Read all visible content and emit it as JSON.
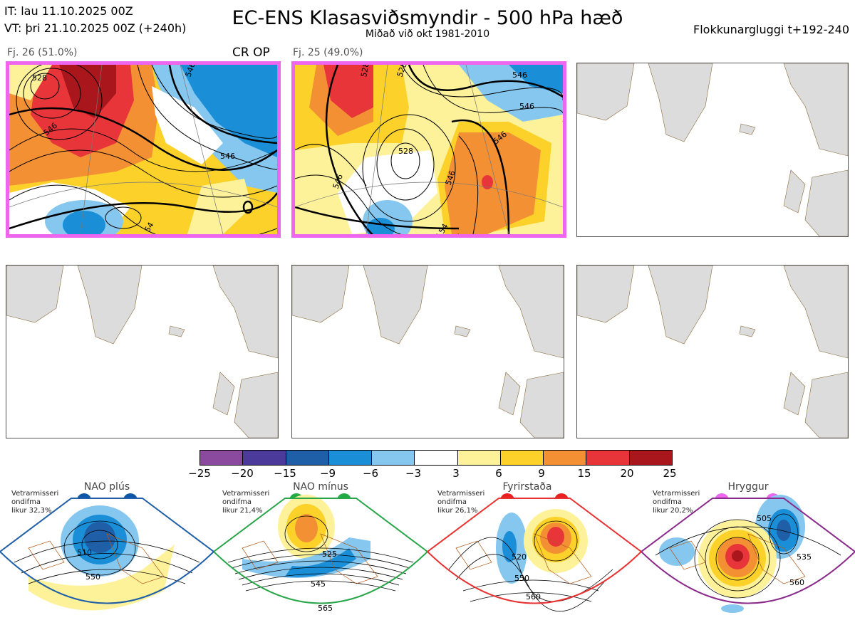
{
  "header": {
    "it_line": "IT: lau 11.10.2025 00Z",
    "vt_line": "VT: þri 21.10.2025 00Z  (+240h)",
    "title": "EC-ENS Klasasviðsmyndir - 500 hPa hæð",
    "subtitle": "Miðað við okt 1981-2010",
    "window": "Flokkunargluggi t+192-240"
  },
  "clusters": [
    {
      "label": "Fj. 26 (51.0%)",
      "tag": "CR OP",
      "contours": [
        "528",
        "546",
        "546",
        "54",
        "546"
      ]
    },
    {
      "label": "Fj. 25 (49.0%)",
      "tag": "",
      "contours": [
        "528",
        "528",
        "546",
        "546",
        "528",
        "546",
        "546",
        "546",
        "54"
      ]
    }
  ],
  "colorbar": {
    "colors": [
      "#8b4a9e",
      "#4b3a9a",
      "#1f5fa8",
      "#1a8fd8",
      "#86c7ef",
      "#ffffff",
      "#fdf29a",
      "#fcd22a",
      "#f49034",
      "#e8353a",
      "#a9171c"
    ],
    "labels": [
      "−25",
      "−20",
      "−15",
      "−9",
      "−6",
      "−3",
      "3",
      "6",
      "9",
      "15",
      "20",
      "25"
    ]
  },
  "regimes": [
    {
      "name": "NAO plús",
      "info1": "Vetrarmisseri",
      "info2": "ondifma",
      "info3": "likur 32,3%",
      "color": "#1f5fa8",
      "dot": "#0d56a6",
      "contours": [
        "510",
        "550"
      ]
    },
    {
      "name": "NAO mínus",
      "info1": "Vetrarmisseri",
      "info2": "ondifma",
      "info3": "likur 21,4%",
      "color": "#2aa64a",
      "dot": "#22aa44",
      "contours": [
        "525",
        "545",
        "565"
      ]
    },
    {
      "name": "Fyrirstaða",
      "info1": "Vetrarmisseri",
      "info2": "ondifma",
      "info3": "likur 26,1%",
      "color": "#e83232",
      "dot": "#e82020",
      "contours": [
        "520",
        "550",
        "560"
      ]
    },
    {
      "name": "Hryggur",
      "info1": "Vetrarmisseri",
      "info2": "ondifma",
      "info3": "likur 20,2%",
      "color": "#8a2a8a",
      "dot": "#ee66ee",
      "contours": [
        "505",
        "535",
        "560"
      ]
    }
  ]
}
